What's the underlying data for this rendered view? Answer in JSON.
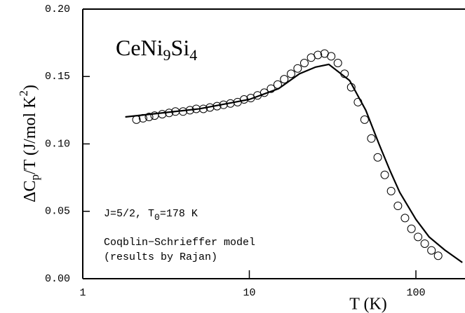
{
  "chart_data": {
    "type": "scatter",
    "formula": [
      "CeNi",
      "9",
      "Si",
      "4"
    ],
    "xlabel": "T  (K)",
    "ylabel": [
      "ΔC",
      "p",
      "/T (J/mol K",
      "2",
      ")"
    ],
    "annotation": [
      "J=5/2, T",
      "0",
      "=178 K"
    ],
    "notes": [
      "Coqblin−Schrieffer model",
      "(results by Rajan)"
    ],
    "xscale": "log",
    "xlim": [
      1,
      197
    ],
    "ylim": [
      0,
      0.2
    ],
    "xticks": [
      1,
      10,
      100
    ],
    "yticks": [
      {
        "value": 0,
        "label": "0.00"
      },
      {
        "value": 0.05,
        "label": "0.05"
      },
      {
        "value": 0.1,
        "label": "0.10"
      },
      {
        "value": 0.15,
        "label": "0.15"
      },
      {
        "value": 0.2,
        "label": "0.20"
      }
    ],
    "series": [
      {
        "type": "scatter",
        "color": "#000000",
        "x": [
          2.1,
          2.3,
          2.5,
          2.7,
          3.0,
          3.3,
          3.6,
          4.0,
          4.4,
          4.8,
          5.3,
          5.8,
          6.4,
          7.0,
          7.7,
          8.5,
          9.3,
          10.2,
          11.2,
          12.3,
          13.5,
          14.8,
          16.2,
          17.8,
          19.5,
          21.4,
          23.5,
          25.8,
          28.3,
          31,
          34,
          37.3,
          40.9,
          44.9,
          49.2,
          54,
          59,
          65,
          71,
          78,
          86,
          94,
          103,
          113,
          124,
          136
        ],
        "values": [
          0.118,
          0.119,
          0.12,
          0.121,
          0.122,
          0.123,
          0.124,
          0.124,
          0.125,
          0.126,
          0.126,
          0.127,
          0.128,
          0.129,
          0.13,
          0.131,
          0.133,
          0.134,
          0.136,
          0.138,
          0.141,
          0.144,
          0.148,
          0.152,
          0.156,
          0.16,
          0.164,
          0.166,
          0.167,
          0.165,
          0.16,
          0.152,
          0.142,
          0.131,
          0.118,
          0.104,
          0.09,
          0.077,
          0.065,
          0.054,
          0.045,
          0.037,
          0.031,
          0.026,
          0.021,
          0.017
        ]
      },
      {
        "type": "line",
        "color": "#000000",
        "x": [
          1.8,
          3,
          5,
          10,
          15,
          20,
          25,
          30,
          40,
          50,
          60,
          70,
          80,
          100,
          120,
          150,
          190
        ],
        "values": [
          0.12,
          0.123,
          0.126,
          0.133,
          0.141,
          0.152,
          0.157,
          0.159,
          0.147,
          0.125,
          0.1,
          0.08,
          0.064,
          0.044,
          0.031,
          0.021,
          0.012
        ]
      }
    ]
  }
}
